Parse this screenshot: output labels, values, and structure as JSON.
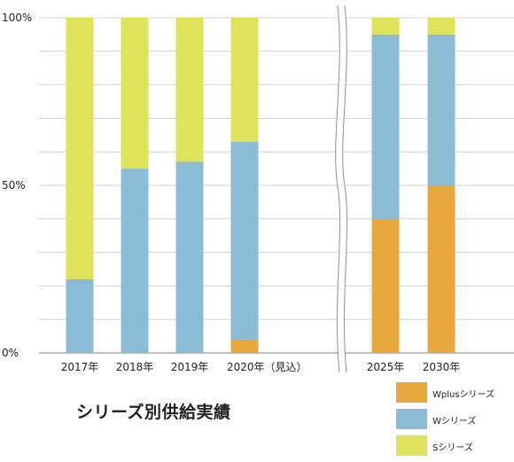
{
  "chart_data": {
    "type": "bar",
    "stacked": true,
    "title": "シリーズ別供給実績",
    "categories": [
      "2017年",
      "2018年",
      "2019年",
      "2020年（見込）",
      "2025年",
      "2030年"
    ],
    "series": [
      {
        "name": "Wplusシリーズ",
        "color": "#e8a83e",
        "values": [
          0,
          0,
          0,
          4,
          40,
          50
        ]
      },
      {
        "name": "Wシリーズ",
        "color": "#8bbcd6",
        "values": [
          22,
          55,
          57,
          59,
          55,
          45
        ]
      },
      {
        "name": "Sシリーズ",
        "color": "#dfe35a",
        "values": [
          78,
          45,
          43,
          37,
          5,
          5
        ]
      }
    ],
    "y_tick_labels": [
      "0%",
      "50%",
      "100%"
    ],
    "ylim": [
      0,
      100
    ],
    "grid": true,
    "axis_break": "between 2020年（見込） and 2025年",
    "legend_position": "bottom-right"
  }
}
